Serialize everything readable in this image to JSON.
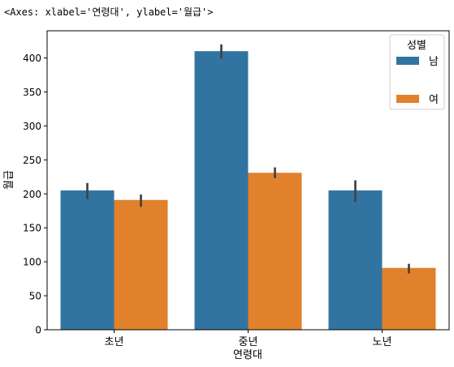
{
  "repr_text": "<Axes: xlabel='연령대', ylabel='월급'>",
  "chart_data": {
    "type": "bar",
    "xlabel": "연령대",
    "ylabel": "월급",
    "categories": [
      "초년",
      "중년",
      "노년"
    ],
    "ylim": [
      0,
      440
    ],
    "yticks": [
      0,
      50,
      100,
      150,
      200,
      250,
      300,
      350,
      400
    ],
    "legend": {
      "title": "성별",
      "placement": "top-right"
    },
    "series": [
      {
        "name": "남",
        "color": "#3274a1",
        "values": [
          205,
          410,
          205
        ],
        "errors": [
          [
            192,
            216
          ],
          [
            399,
            420
          ],
          [
            188,
            220
          ]
        ]
      },
      {
        "name": "여",
        "color": "#e1812c",
        "values": [
          191,
          231,
          91
        ],
        "errors": [
          [
            181,
            199
          ],
          [
            223,
            239
          ],
          [
            83,
            97
          ]
        ]
      }
    ]
  }
}
